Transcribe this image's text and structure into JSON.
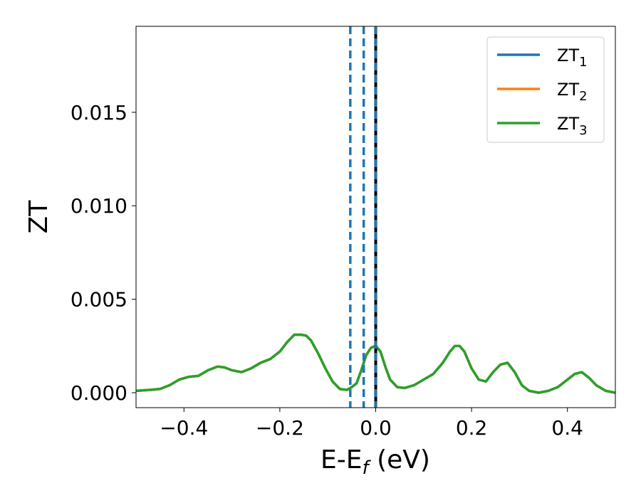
{
  "chart_data": {
    "type": "line",
    "xlabel": {
      "base": "E-E",
      "sub": "f",
      "suffix": " (eV)"
    },
    "ylabel": "ZT",
    "xlim": [
      -0.5,
      0.5
    ],
    "ylim": [
      -0.0008,
      0.0196
    ],
    "xticks": [
      -0.4,
      -0.2,
      0.0,
      0.2,
      0.4
    ],
    "xtick_labels": [
      "−0.4",
      "−0.2",
      "0.0",
      "0.2",
      "0.4"
    ],
    "yticks": [
      0.0,
      0.005,
      0.01,
      0.015
    ],
    "ytick_labels": [
      "0.000",
      "0.005",
      "0.010",
      "0.015"
    ],
    "grid": false,
    "legend_position": "top-right",
    "colors": {
      "ZT1": "#1f77b4",
      "ZT2": "#ff7f0e",
      "ZT3": "#2ca02c",
      "fermi": "#000000"
    },
    "series": [
      {
        "name": "ZT",
        "sub": "1",
        "color": "#1f77b4",
        "shares_data_with": "ZT3"
      },
      {
        "name": "ZT",
        "sub": "2",
        "color": "#ff7f0e",
        "shares_data_with": "ZT3"
      },
      {
        "name": "ZT",
        "sub": "3",
        "color": "#2ca02c",
        "x": [
          -0.5,
          -0.47,
          -0.45,
          -0.43,
          -0.41,
          -0.39,
          -0.37,
          -0.35,
          -0.33,
          -0.315,
          -0.3,
          -0.28,
          -0.26,
          -0.24,
          -0.22,
          -0.2,
          -0.185,
          -0.17,
          -0.155,
          -0.145,
          -0.135,
          -0.12,
          -0.105,
          -0.09,
          -0.075,
          -0.06,
          -0.05,
          -0.04,
          -0.03,
          -0.02,
          -0.01,
          0.0,
          0.01,
          0.02,
          0.03,
          0.045,
          0.06,
          0.08,
          0.1,
          0.12,
          0.14,
          0.155,
          0.165,
          0.175,
          0.185,
          0.2,
          0.215,
          0.23,
          0.245,
          0.26,
          0.275,
          0.29,
          0.305,
          0.32,
          0.34,
          0.36,
          0.38,
          0.4,
          0.415,
          0.43,
          0.445,
          0.46,
          0.48,
          0.5
        ],
        "y": [
          0.0001,
          0.00015,
          0.0002,
          0.0004,
          0.0007,
          0.00085,
          0.0009,
          0.0012,
          0.0014,
          0.00135,
          0.0012,
          0.0011,
          0.0013,
          0.0016,
          0.0018,
          0.0022,
          0.0027,
          0.0031,
          0.0031,
          0.00305,
          0.0028,
          0.0021,
          0.0013,
          0.0006,
          0.0002,
          0.00015,
          0.0003,
          0.0005,
          0.0012,
          0.002,
          0.0024,
          0.0025,
          0.0022,
          0.0014,
          0.0007,
          0.0003,
          0.00025,
          0.0004,
          0.0007,
          0.001,
          0.0016,
          0.0022,
          0.0025,
          0.0025,
          0.0022,
          0.0013,
          0.0007,
          0.0006,
          0.0011,
          0.0015,
          0.0016,
          0.0011,
          0.0004,
          0.0001,
          0.0,
          0.0001,
          0.0003,
          0.0007,
          0.001,
          0.0011,
          0.0008,
          0.0004,
          0.0001,
          0.0
        ]
      }
    ],
    "vlines": [
      {
        "x": -0.053,
        "style": "dashed",
        "color": "#1f77b4"
      },
      {
        "x": -0.025,
        "style": "dashed",
        "color": "#1f77b4"
      },
      {
        "x": 0.0,
        "style": "solid",
        "color": "#000000"
      },
      {
        "x": 0.0,
        "style": "dashed",
        "color": "#1f77b4"
      }
    ]
  }
}
